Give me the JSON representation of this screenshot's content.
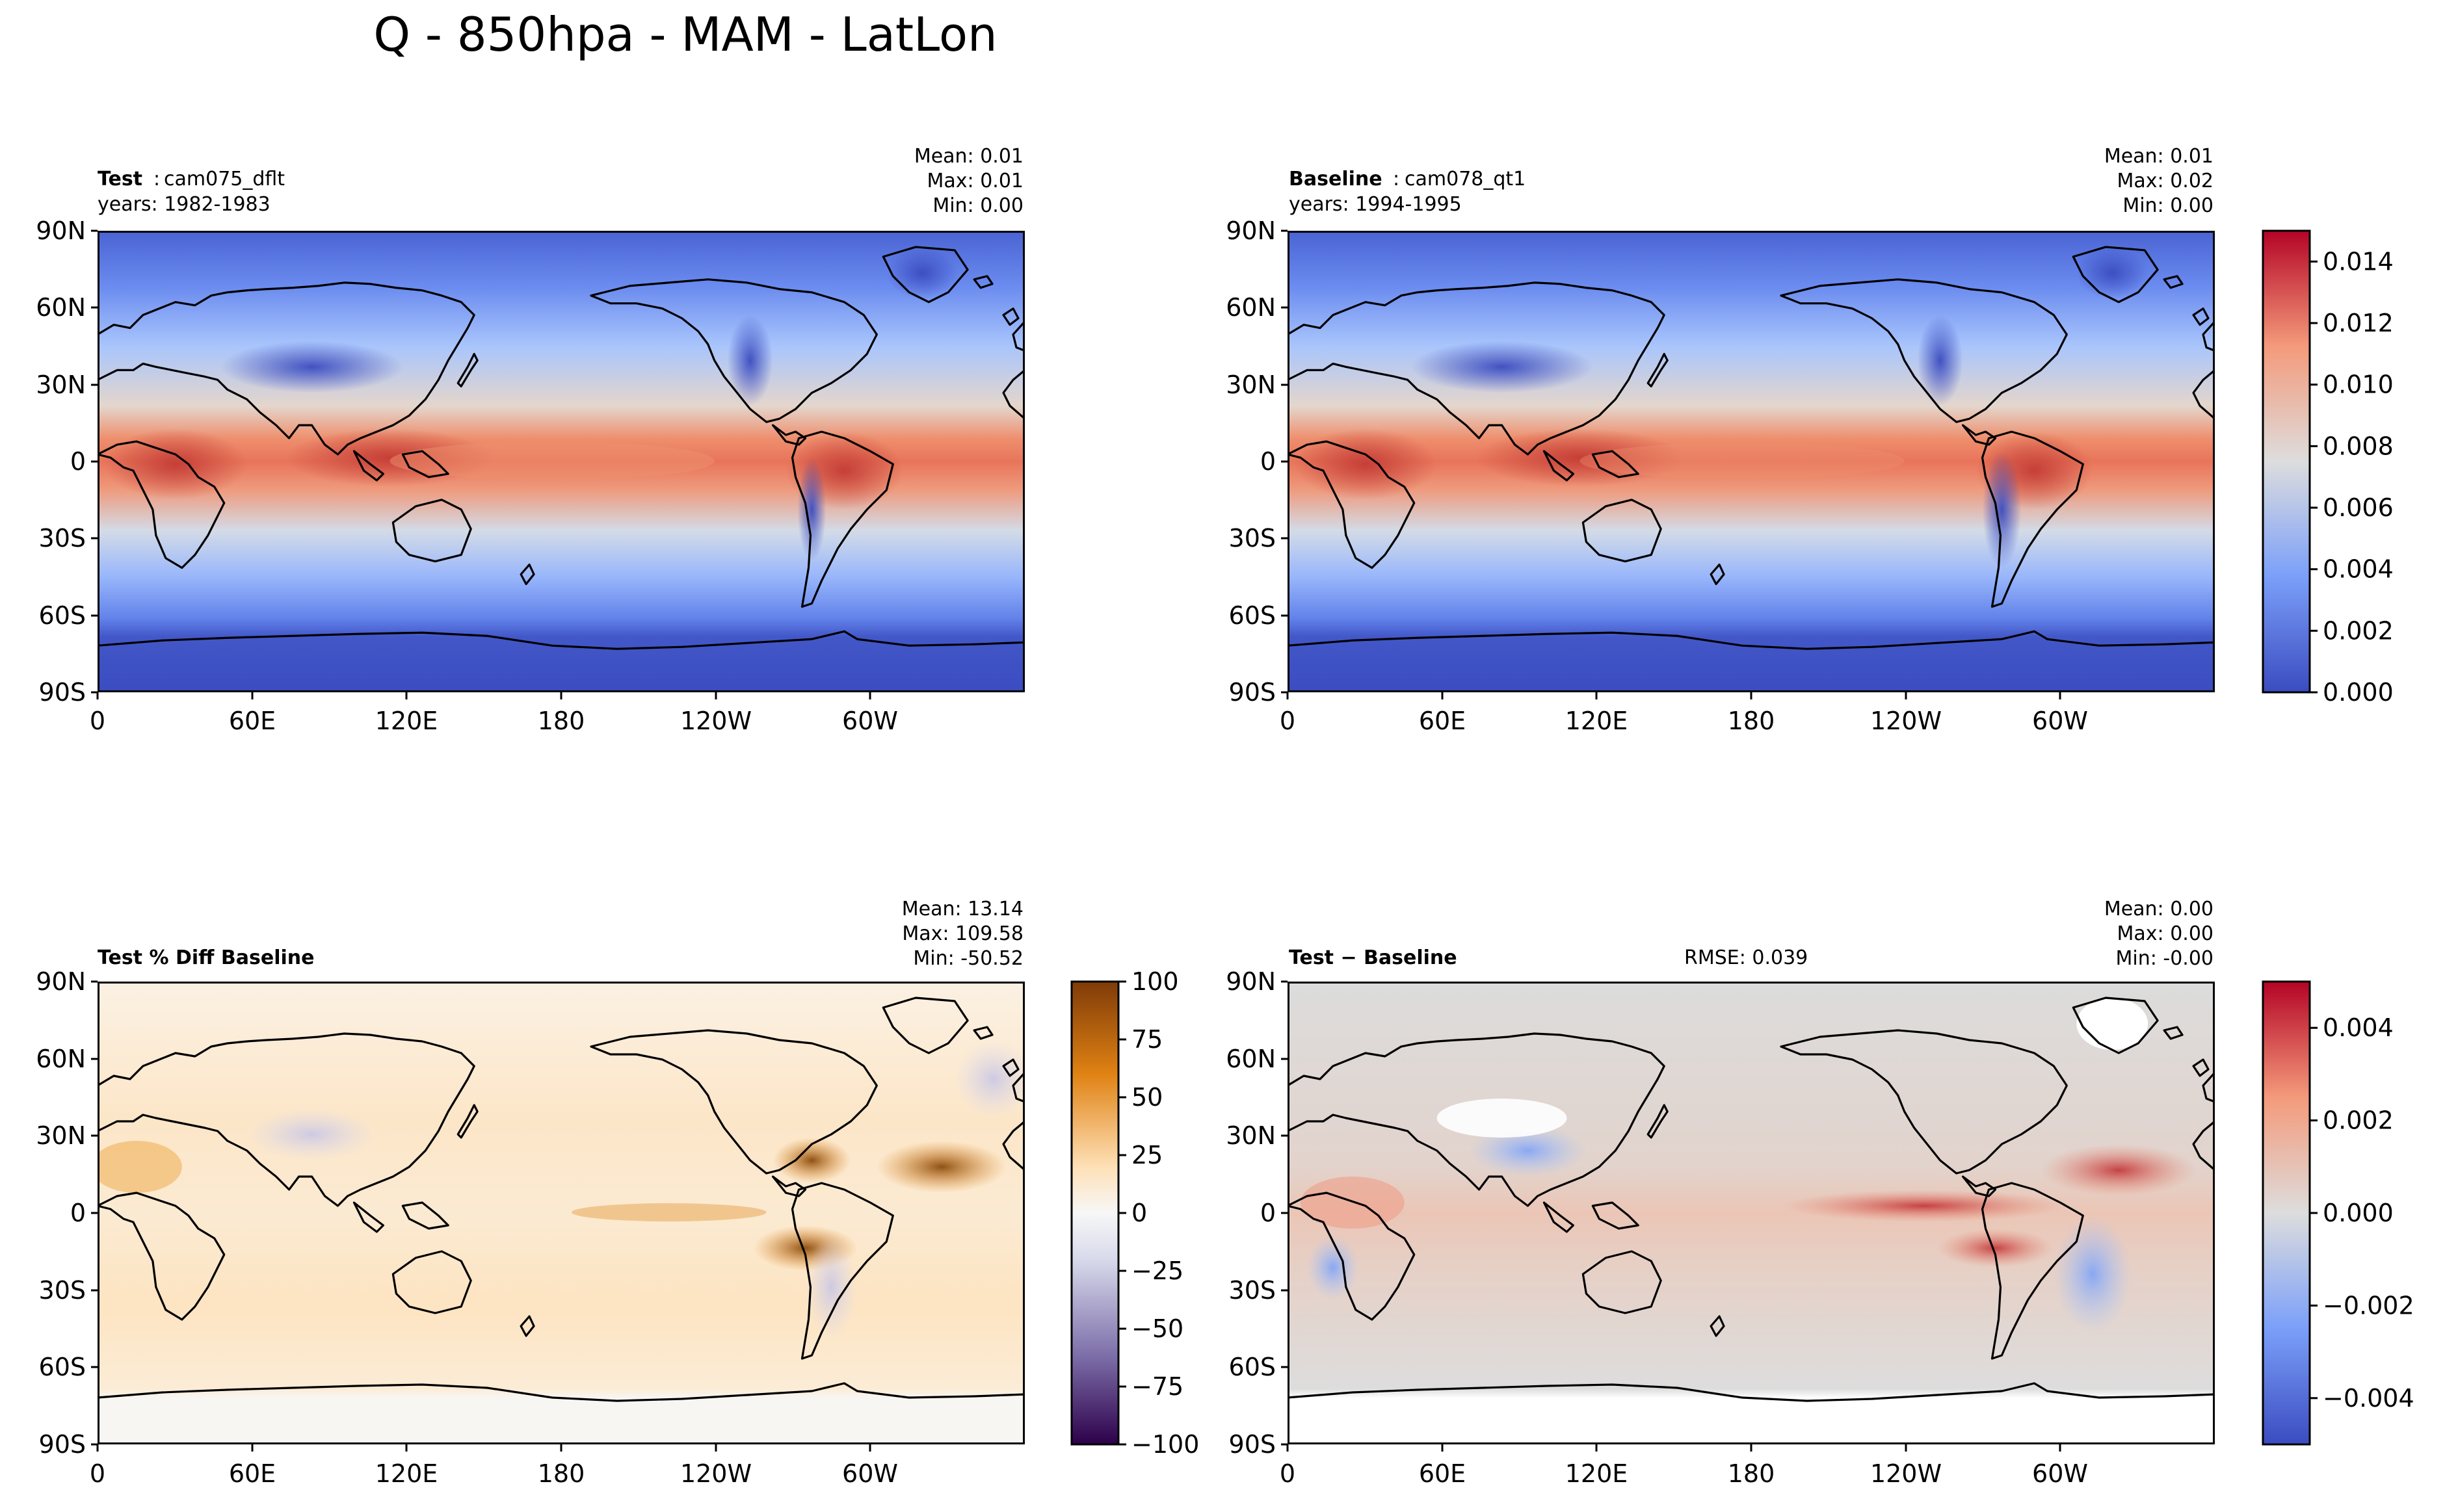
{
  "figure_title": "Q - 850hpa - MAM - LatLon",
  "colors": {
    "cold": "#3b4cc0",
    "neutral": "#dddddd",
    "warm": "#b40426",
    "diff_neg": "#2d004b",
    "diff_pos": "#7f3b08"
  },
  "chart_data": [
    {
      "type": "heatmap",
      "panel": "test",
      "title_bold": "Test",
      "title_rest": "cam075_dflt",
      "years": "years: 1982-1983",
      "stats": {
        "mean": "Mean:  0.01",
        "max": "Max:  0.01",
        "min": "Min:  0.00"
      },
      "variable": "Q",
      "level": "850hpa",
      "season": "MAM",
      "ylim": [
        -90,
        90
      ],
      "xlim": [
        0,
        360
      ],
      "colormap": "coolwarm",
      "value_range": [
        0.0,
        0.015
      ],
      "xticks": [
        "0",
        "60E",
        "120E",
        "180",
        "120W",
        "60W"
      ],
      "yticks": [
        "90N",
        "60N",
        "30N",
        "0",
        "30S",
        "60S",
        "90S"
      ]
    },
    {
      "type": "heatmap",
      "panel": "baseline",
      "title_bold": "Baseline",
      "title_rest": "cam078_qt1",
      "years": "years: 1994-1995",
      "stats": {
        "mean": "Mean:  0.01",
        "max": "Max:  0.02",
        "min": "Min:  0.00"
      },
      "ylim": [
        -90,
        90
      ],
      "xlim": [
        0,
        360
      ],
      "colormap": "coolwarm",
      "value_range": [
        0.0,
        0.015
      ],
      "xticks": [
        "0",
        "60E",
        "120E",
        "180",
        "120W",
        "60W"
      ],
      "yticks": [
        "90N",
        "60N",
        "30N",
        "0",
        "30S",
        "60S",
        "90S"
      ],
      "colorbar": {
        "ticks": [
          0.0,
          0.002,
          0.004,
          0.006,
          0.008,
          0.01,
          0.012,
          0.014
        ],
        "labels": [
          "0.000",
          "0.002",
          "0.004",
          "0.006",
          "0.008",
          "0.010",
          "0.012",
          "0.014"
        ],
        "range": [
          0.0,
          0.015
        ]
      }
    },
    {
      "type": "heatmap",
      "panel": "pct_diff",
      "title_bold": "Test % Diff Baseline",
      "stats": {
        "mean": "Mean: 13.14",
        "max": "Max: 109.58",
        "min": "Min: -50.52"
      },
      "ylim": [
        -90,
        90
      ],
      "xlim": [
        0,
        360
      ],
      "colormap": "PuOr_r",
      "value_range": [
        -100,
        100
      ],
      "xticks": [
        "0",
        "60E",
        "120E",
        "180",
        "120W",
        "60W"
      ],
      "yticks": [
        "90N",
        "60N",
        "30N",
        "0",
        "30S",
        "60S",
        "90S"
      ],
      "colorbar": {
        "ticks": [
          -100,
          -75,
          -50,
          -25,
          0,
          25,
          50,
          75,
          100
        ],
        "labels": [
          "−100",
          "−75",
          "−50",
          "−25",
          "0",
          "25",
          "50",
          "75",
          "100"
        ],
        "range": [
          -100,
          100
        ]
      }
    },
    {
      "type": "heatmap",
      "panel": "abs_diff",
      "title_bold": "Test − Baseline",
      "rmse": "RMSE: 0.039",
      "stats": {
        "mean": "Mean:  0.00",
        "max": "Max:  0.00",
        "min": "Min: -0.00"
      },
      "ylim": [
        -90,
        90
      ],
      "xlim": [
        0,
        360
      ],
      "colormap": "coolwarm",
      "value_range": [
        -0.005,
        0.005
      ],
      "xticks": [
        "0",
        "60E",
        "120E",
        "180",
        "120W",
        "60W"
      ],
      "yticks": [
        "90N",
        "60N",
        "30N",
        "0",
        "30S",
        "60S",
        "90S"
      ],
      "colorbar": {
        "ticks": [
          -0.004,
          -0.002,
          0.0,
          0.002,
          0.004
        ],
        "labels": [
          "−0.004",
          "−0.002",
          "0.000",
          "0.002",
          "0.004"
        ],
        "range": [
          -0.005,
          0.005
        ]
      }
    }
  ]
}
